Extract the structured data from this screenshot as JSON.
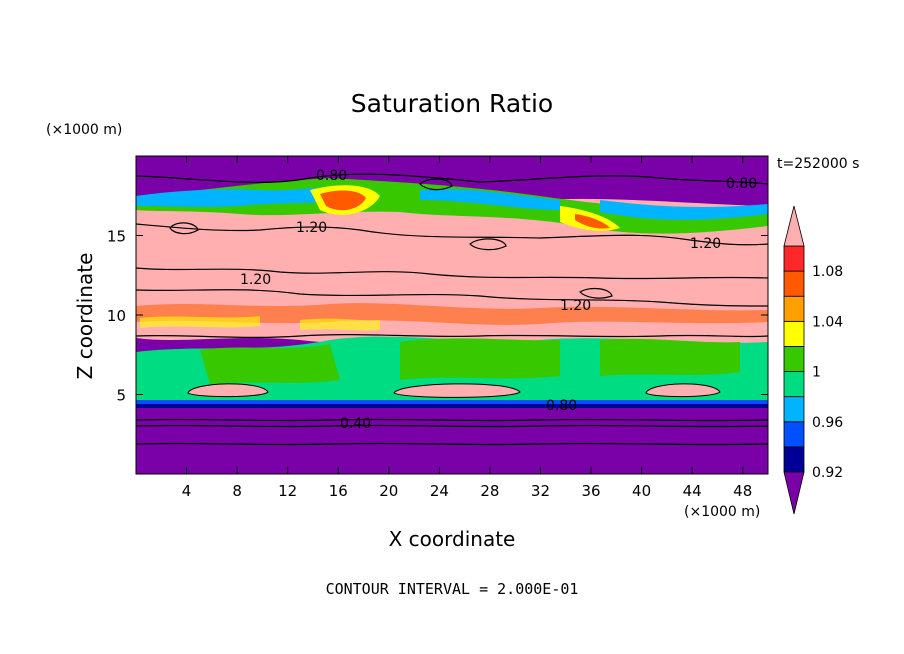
{
  "chart_data": {
    "type": "heatmap",
    "title": "Saturation Ratio",
    "xlabel": "X coordinate",
    "ylabel": "Z coordinate",
    "x_unit": "(×1000 m)",
    "y_unit": "(×1000 m)",
    "time_label": "t=252000 s",
    "footer": "CONTOUR INTERVAL = 2.000E-01",
    "xlim": [
      0,
      50
    ],
    "ylim": [
      0,
      20
    ],
    "x_ticks": [
      4,
      8,
      12,
      16,
      20,
      24,
      28,
      32,
      36,
      40,
      44,
      48
    ],
    "y_ticks": [
      5,
      10,
      15
    ],
    "colorbar": {
      "levels": [
        0.9,
        0.92,
        0.94,
        0.96,
        0.98,
        1.0,
        1.02,
        1.04,
        1.06,
        1.08,
        1.1
      ],
      "tick_labels": [
        "0.92",
        "0.96",
        "1",
        "1.04",
        "1.08"
      ],
      "colors": [
        "#7a00a8",
        "#000096",
        "#0050ff",
        "#00b4ff",
        "#00dc82",
        "#37c800",
        "#ffff00",
        "#ffa000",
        "#ff5a00",
        "#ff2828",
        "#ffafaf"
      ],
      "extend": "both"
    },
    "contour_labels": [
      "0.80",
      "0.80",
      "1.20",
      "1.20",
      "1.20",
      "1.20",
      "0.80",
      "0.40"
    ],
    "background_colors": {
      "low": "#7a00a8",
      "high": "#ffafaf",
      "mid": "#00dc82",
      "cloud_base": "#37c800"
    }
  }
}
